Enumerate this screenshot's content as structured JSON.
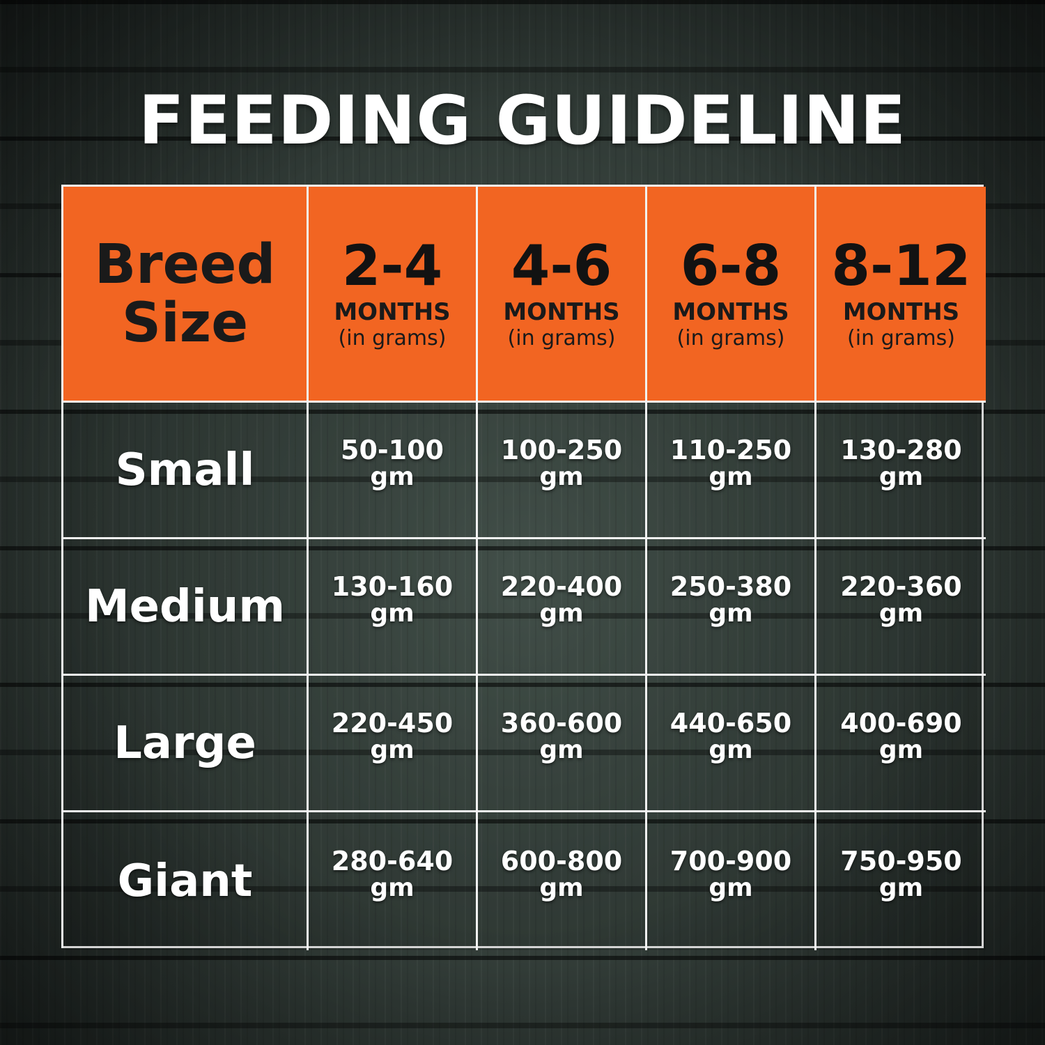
{
  "title": "FEEDING GUIDELINE",
  "header": {
    "corner": [
      "Breed",
      "Size"
    ],
    "columns": [
      {
        "range": "2-4",
        "label": "MONTHS",
        "unit": "(in grams)"
      },
      {
        "range": "4-6",
        "label": "MONTHS",
        "unit": "(in grams)"
      },
      {
        "range": "6-8",
        "label": "MONTHS",
        "unit": "(in grams)"
      },
      {
        "range": "8-12",
        "label": "MONTHS",
        "unit": "(in grams)"
      }
    ]
  },
  "rows": [
    {
      "breed": "Small",
      "values": [
        "50-100",
        "100-250",
        "110-250",
        "130-280"
      ]
    },
    {
      "breed": "Medium",
      "values": [
        "130-160",
        "220-400",
        "250-380",
        "220-360"
      ]
    },
    {
      "breed": "Large",
      "values": [
        "220-450",
        "360-600",
        "440-650",
        "400-690"
      ]
    },
    {
      "breed": "Giant",
      "values": [
        "280-640",
        "600-800",
        "700-900",
        "750-950"
      ]
    }
  ],
  "value_unit": "gm",
  "colors": {
    "header_bg": "#f26522",
    "grid_line": "#f2f2f2",
    "background": "#2e3530",
    "text_light": "#ffffff",
    "text_dark": "#1a1a1a"
  }
}
